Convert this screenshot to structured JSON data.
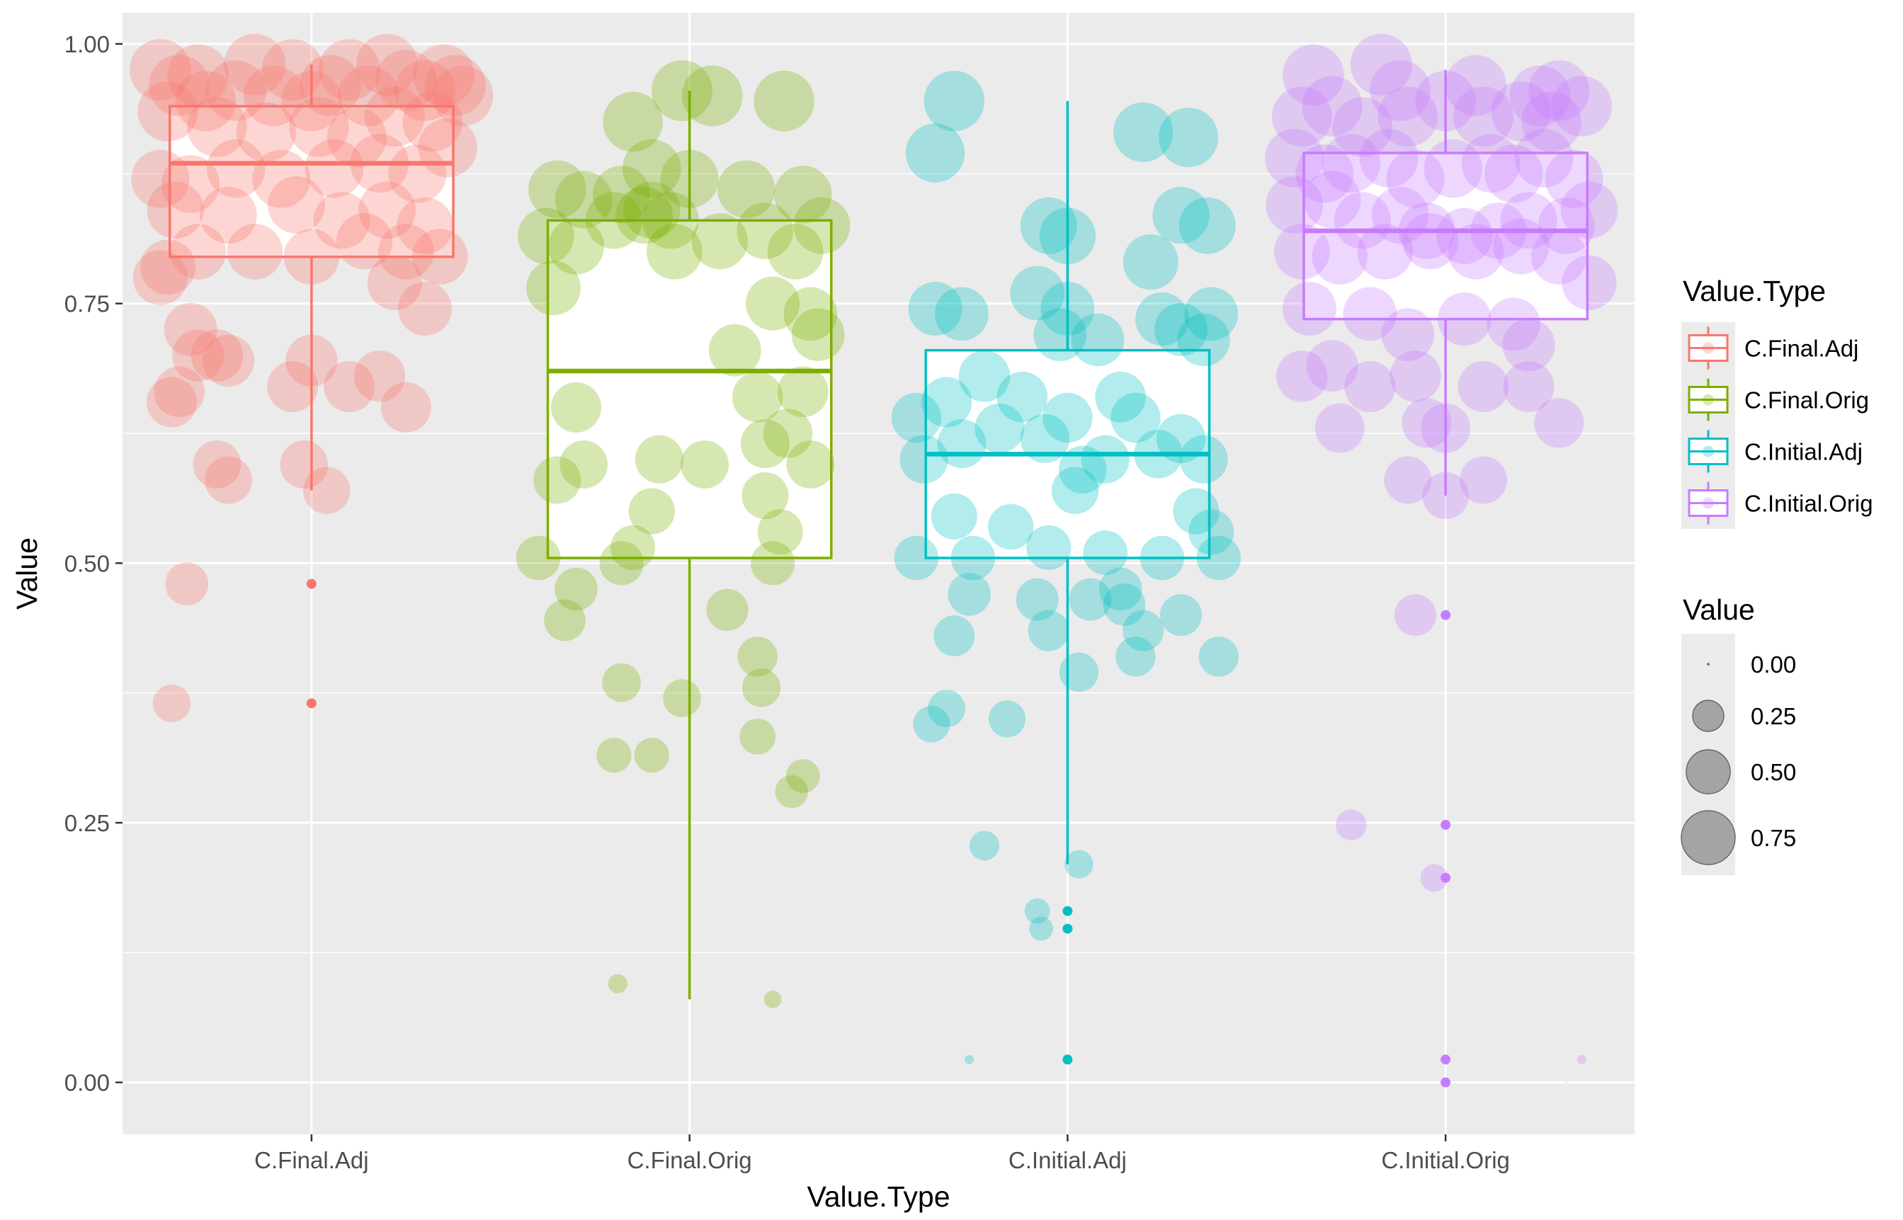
{
  "chart_data": {
    "type": "boxplot",
    "xlabel": "Value.Type",
    "ylabel": "Value",
    "categories": [
      "C.Final.Adj",
      "C.Final.Orig",
      "C.Initial.Adj",
      "C.Initial.Orig"
    ],
    "ylim": [
      -0.05,
      1.03
    ],
    "yticks": [
      0.0,
      0.25,
      0.5,
      0.75,
      1.0
    ],
    "ytick_labels": [
      "0.00",
      "0.25",
      "0.50",
      "0.75",
      "1.00"
    ],
    "grid": true,
    "colors": {
      "C.Final.Adj": "#F8766D",
      "C.Final.Orig": "#7CAE00",
      "C.Initial.Adj": "#00BFC4",
      "C.Initial.Orig": "#C77CFF",
      "panel_background": "#EBEBEB",
      "grid": "#FFFFFF"
    },
    "boxes": [
      {
        "category": "C.Final.Adj",
        "whisker_low": 0.57,
        "q1": 0.795,
        "median": 0.885,
        "q3": 0.94,
        "whisker_high": 0.98,
        "outliers": [
          0.48,
          0.365
        ]
      },
      {
        "category": "C.Final.Orig",
        "whisker_low": 0.08,
        "q1": 0.505,
        "median": 0.685,
        "q3": 0.83,
        "whisker_high": 0.955,
        "outliers": []
      },
      {
        "category": "C.Initial.Adj",
        "whisker_low": 0.21,
        "q1": 0.505,
        "median": 0.605,
        "q3": 0.705,
        "whisker_high": 0.945,
        "outliers": [
          0.165,
          0.148,
          0.022
        ]
      },
      {
        "category": "C.Initial.Orig",
        "whisker_low": 0.565,
        "q1": 0.735,
        "median": 0.82,
        "q3": 0.895,
        "whisker_high": 0.975,
        "outliers": [
          0.45,
          0.248,
          0.197,
          0.022,
          0.0
        ]
      }
    ],
    "jitter_points": {
      "C.Final.Adj": [
        [
          -0.4,
          0.975
        ],
        [
          -0.35,
          0.96
        ],
        [
          -0.3,
          0.97
        ],
        [
          -0.15,
          0.98
        ],
        [
          -0.05,
          0.975
        ],
        [
          0.1,
          0.975
        ],
        [
          0.2,
          0.98
        ],
        [
          0.25,
          0.965
        ],
        [
          0.35,
          0.97
        ],
        [
          0.38,
          0.96
        ],
        [
          -0.38,
          0.935
        ],
        [
          -0.28,
          0.945
        ],
        [
          -0.2,
          0.955
        ],
        [
          -0.1,
          0.95
        ],
        [
          0.0,
          0.945
        ],
        [
          0.05,
          0.96
        ],
        [
          0.15,
          0.95
        ],
        [
          0.3,
          0.955
        ],
        [
          0.4,
          0.95
        ],
        [
          -0.25,
          0.92
        ],
        [
          -0.12,
          0.915
        ],
        [
          0.02,
          0.92
        ],
        [
          0.12,
          0.91
        ],
        [
          0.22,
          0.93
        ],
        [
          0.32,
          0.925
        ],
        [
          -0.4,
          0.87
        ],
        [
          -0.32,
          0.865
        ],
        [
          -0.2,
          0.88
        ],
        [
          -0.08,
          0.87
        ],
        [
          0.06,
          0.88
        ],
        [
          0.18,
          0.885
        ],
        [
          0.28,
          0.875
        ],
        [
          0.36,
          0.9
        ],
        [
          -0.36,
          0.84
        ],
        [
          -0.22,
          0.835
        ],
        [
          -0.04,
          0.845
        ],
        [
          0.08,
          0.83
        ],
        [
          0.2,
          0.84
        ],
        [
          0.3,
          0.825
        ],
        [
          -0.3,
          0.8
        ],
        [
          -0.15,
          0.8
        ],
        [
          0.0,
          0.795
        ],
        [
          0.14,
          0.81
        ],
        [
          0.25,
          0.8
        ],
        [
          0.34,
          0.795
        ],
        [
          -0.4,
          0.775
        ],
        [
          -0.38,
          0.785
        ],
        [
          0.22,
          0.77
        ],
        [
          -0.32,
          0.725
        ],
        [
          -0.3,
          0.7
        ],
        [
          -0.25,
          0.7
        ],
        [
          -0.22,
          0.695
        ],
        [
          0.0,
          0.695
        ],
        [
          0.1,
          0.67
        ],
        [
          -0.35,
          0.665
        ],
        [
          -0.37,
          0.655
        ],
        [
          -0.05,
          0.67
        ],
        [
          0.18,
          0.68
        ],
        [
          0.25,
          0.65
        ],
        [
          0.3,
          0.745
        ],
        [
          -0.25,
          0.595
        ],
        [
          -0.22,
          0.58
        ],
        [
          -0.02,
          0.595
        ],
        [
          0.04,
          0.57
        ],
        [
          -0.33,
          0.48
        ],
        [
          -0.37,
          0.365
        ]
      ],
      "C.Final.Orig": [
        [
          -0.02,
          0.955
        ],
        [
          0.06,
          0.95
        ],
        [
          0.25,
          0.945
        ],
        [
          -0.15,
          0.925
        ],
        [
          -0.1,
          0.88
        ],
        [
          -0.35,
          0.86
        ],
        [
          -0.28,
          0.85
        ],
        [
          -0.18,
          0.855
        ],
        [
          -0.1,
          0.84
        ],
        [
          -0.05,
          0.83
        ],
        [
          0.0,
          0.87
        ],
        [
          0.15,
          0.86
        ],
        [
          0.3,
          0.855
        ],
        [
          0.35,
          0.825
        ],
        [
          -0.38,
          0.815
        ],
        [
          -0.3,
          0.805
        ],
        [
          -0.2,
          0.83
        ],
        [
          -0.12,
          0.835
        ],
        [
          -0.04,
          0.8
        ],
        [
          0.08,
          0.81
        ],
        [
          0.2,
          0.82
        ],
        [
          0.28,
          0.8
        ],
        [
          -0.36,
          0.765
        ],
        [
          0.22,
          0.75
        ],
        [
          0.32,
          0.74
        ],
        [
          0.34,
          0.72
        ],
        [
          0.12,
          0.705
        ],
        [
          -0.3,
          0.65
        ],
        [
          0.3,
          0.665
        ],
        [
          0.18,
          0.66
        ],
        [
          0.2,
          0.615
        ],
        [
          0.26,
          0.625
        ],
        [
          -0.28,
          0.595
        ],
        [
          -0.35,
          0.58
        ],
        [
          -0.08,
          0.6
        ],
        [
          0.04,
          0.595
        ],
        [
          0.32,
          0.595
        ],
        [
          -0.1,
          0.55
        ],
        [
          0.2,
          0.565
        ],
        [
          0.24,
          0.53
        ],
        [
          -0.15,
          0.515
        ],
        [
          -0.18,
          0.5
        ],
        [
          0.22,
          0.5
        ],
        [
          -0.4,
          0.505
        ],
        [
          -0.3,
          0.475
        ],
        [
          -0.33,
          0.445
        ],
        [
          0.1,
          0.455
        ],
        [
          0.18,
          0.41
        ],
        [
          -0.18,
          0.385
        ],
        [
          0.19,
          0.38
        ],
        [
          -0.02,
          0.37
        ],
        [
          0.18,
          0.333
        ],
        [
          -0.2,
          0.315
        ],
        [
          -0.1,
          0.315
        ],
        [
          0.3,
          0.295
        ],
        [
          0.27,
          0.28
        ],
        [
          -0.19,
          0.095
        ],
        [
          0.22,
          0.08
        ]
      ],
      "C.Initial.Adj": [
        [
          -0.3,
          0.945
        ],
        [
          -0.35,
          0.895
        ],
        [
          0.2,
          0.915
        ],
        [
          0.32,
          0.91
        ],
        [
          -0.05,
          0.825
        ],
        [
          0.0,
          0.815
        ],
        [
          0.22,
          0.79
        ],
        [
          0.3,
          0.835
        ],
        [
          0.37,
          0.825
        ],
        [
          -0.35,
          0.745
        ],
        [
          -0.28,
          0.74
        ],
        [
          -0.08,
          0.76
        ],
        [
          0.0,
          0.745
        ],
        [
          -0.02,
          0.72
        ],
        [
          0.08,
          0.715
        ],
        [
          0.25,
          0.735
        ],
        [
          0.3,
          0.725
        ],
        [
          0.38,
          0.74
        ],
        [
          0.36,
          0.715
        ],
        [
          -0.4,
          0.64
        ],
        [
          -0.38,
          0.6
        ],
        [
          -0.32,
          0.655
        ],
        [
          -0.28,
          0.615
        ],
        [
          -0.22,
          0.68
        ],
        [
          -0.18,
          0.63
        ],
        [
          -0.12,
          0.66
        ],
        [
          -0.06,
          0.62
        ],
        [
          0.0,
          0.64
        ],
        [
          0.04,
          0.59
        ],
        [
          0.1,
          0.6
        ],
        [
          0.14,
          0.66
        ],
        [
          0.18,
          0.64
        ],
        [
          0.24,
          0.605
        ],
        [
          0.3,
          0.62
        ],
        [
          0.36,
          0.6
        ],
        [
          -0.4,
          0.505
        ],
        [
          -0.3,
          0.545
        ],
        [
          -0.25,
          0.505
        ],
        [
          -0.15,
          0.535
        ],
        [
          -0.05,
          0.515
        ],
        [
          0.02,
          0.57
        ],
        [
          0.1,
          0.51
        ],
        [
          0.25,
          0.505
        ],
        [
          0.34,
          0.55
        ],
        [
          0.38,
          0.53
        ],
        [
          0.4,
          0.505
        ],
        [
          -0.26,
          0.47
        ],
        [
          -0.08,
          0.465
        ],
        [
          0.06,
          0.465
        ],
        [
          0.14,
          0.475
        ],
        [
          0.15,
          0.46
        ],
        [
          0.3,
          0.45
        ],
        [
          -0.3,
          0.43
        ],
        [
          -0.05,
          0.435
        ],
        [
          0.2,
          0.435
        ],
        [
          0.18,
          0.41
        ],
        [
          0.4,
          0.41
        ],
        [
          0.03,
          0.395
        ],
        [
          -0.32,
          0.36
        ],
        [
          -0.36,
          0.345
        ],
        [
          -0.16,
          0.35
        ],
        [
          -0.22,
          0.228
        ],
        [
          0.03,
          0.21
        ],
        [
          -0.08,
          0.165
        ],
        [
          -0.07,
          0.148
        ],
        [
          -0.26,
          0.022
        ]
      ],
      "C.Initial.Orig": [
        [
          -0.35,
          0.97
        ],
        [
          -0.17,
          0.98
        ],
        [
          -0.12,
          0.955
        ],
        [
          0.08,
          0.96
        ],
        [
          0.25,
          0.95
        ],
        [
          0.3,
          0.955
        ],
        [
          -0.38,
          0.93
        ],
        [
          -0.3,
          0.94
        ],
        [
          -0.22,
          0.92
        ],
        [
          -0.1,
          0.93
        ],
        [
          0.0,
          0.945
        ],
        [
          0.1,
          0.93
        ],
        [
          0.2,
          0.935
        ],
        [
          0.28,
          0.925
        ],
        [
          0.36,
          0.94
        ],
        [
          -0.4,
          0.89
        ],
        [
          -0.32,
          0.875
        ],
        [
          -0.25,
          0.885
        ],
        [
          -0.15,
          0.89
        ],
        [
          -0.08,
          0.87
        ],
        [
          0.02,
          0.88
        ],
        [
          0.12,
          0.885
        ],
        [
          0.18,
          0.875
        ],
        [
          0.26,
          0.89
        ],
        [
          0.34,
          0.87
        ],
        [
          -0.4,
          0.845
        ],
        [
          -0.3,
          0.85
        ],
        [
          -0.22,
          0.83
        ],
        [
          -0.12,
          0.835
        ],
        [
          -0.05,
          0.82
        ],
        [
          0.05,
          0.815
        ],
        [
          0.14,
          0.82
        ],
        [
          0.22,
          0.83
        ],
        [
          0.32,
          0.825
        ],
        [
          0.38,
          0.84
        ],
        [
          -0.38,
          0.8
        ],
        [
          -0.28,
          0.795
        ],
        [
          -0.16,
          0.8
        ],
        [
          -0.04,
          0.81
        ],
        [
          0.08,
          0.8
        ],
        [
          0.2,
          0.805
        ],
        [
          0.3,
          0.795
        ],
        [
          0.38,
          0.77
        ],
        [
          -0.36,
          0.745
        ],
        [
          -0.2,
          0.74
        ],
        [
          -0.1,
          0.72
        ],
        [
          0.05,
          0.735
        ],
        [
          0.18,
          0.73
        ],
        [
          0.22,
          0.71
        ],
        [
          -0.38,
          0.68
        ],
        [
          -0.3,
          0.69
        ],
        [
          -0.2,
          0.67
        ],
        [
          -0.08,
          0.68
        ],
        [
          0.1,
          0.67
        ],
        [
          0.22,
          0.67
        ],
        [
          0.3,
          0.635
        ],
        [
          -0.28,
          0.63
        ],
        [
          -0.05,
          0.635
        ],
        [
          0.0,
          0.63
        ],
        [
          -0.1,
          0.58
        ],
        [
          0.1,
          0.58
        ],
        [
          0.0,
          0.565
        ],
        [
          -0.08,
          0.45
        ],
        [
          -0.25,
          0.248
        ],
        [
          -0.03,
          0.197
        ],
        [
          0.36,
          0.022
        ],
        [
          0.32,
          0.0
        ]
      ]
    },
    "legend": {
      "placement": "right",
      "color_title": "Value.Type",
      "color_entries": [
        "C.Final.Adj",
        "C.Final.Orig",
        "C.Initial.Adj",
        "C.Initial.Orig"
      ],
      "size_title": "Value",
      "size_entries": [
        {
          "label": "0.00",
          "value": 0.0
        },
        {
          "label": "0.25",
          "value": 0.25
        },
        {
          "label": "0.50",
          "value": 0.5
        },
        {
          "label": "0.75",
          "value": 0.75
        }
      ]
    }
  }
}
